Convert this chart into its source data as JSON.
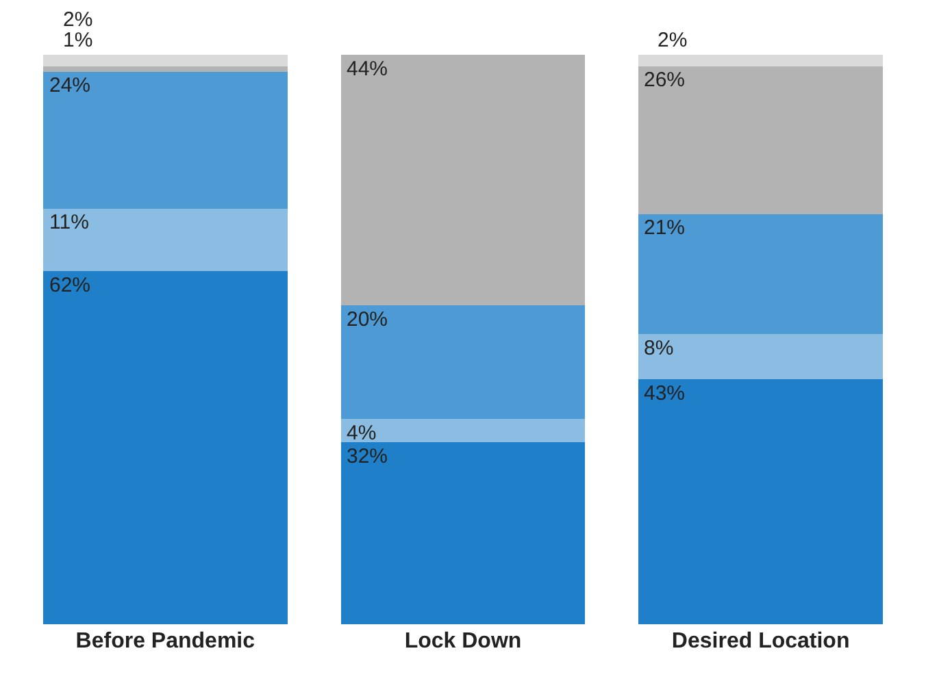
{
  "chart_data": {
    "type": "bar",
    "stacked": true,
    "categories": [
      "Before Pandemic",
      "Lock Down",
      "Desired Location"
    ],
    "series": [
      {
        "color": "#1f7fc8",
        "values": [
          62,
          32,
          43
        ],
        "value_labels": [
          "62%",
          "32%",
          "43%"
        ]
      },
      {
        "color": "#8bbde3",
        "values": [
          11,
          4,
          8
        ],
        "value_labels": [
          "11%",
          "4%",
          "8%"
        ]
      },
      {
        "color": "#4d9ad4",
        "values": [
          24,
          20,
          21
        ],
        "value_labels": [
          "24%",
          "20%",
          "21%"
        ]
      },
      {
        "color": "#b3b3b3",
        "values": [
          1,
          44,
          26
        ],
        "value_labels": [
          "1%",
          "44%",
          "26%"
        ]
      },
      {
        "color": "#dadada",
        "values": [
          2,
          0,
          2
        ],
        "value_labels": [
          "2%",
          null,
          "2%"
        ]
      }
    ]
  }
}
